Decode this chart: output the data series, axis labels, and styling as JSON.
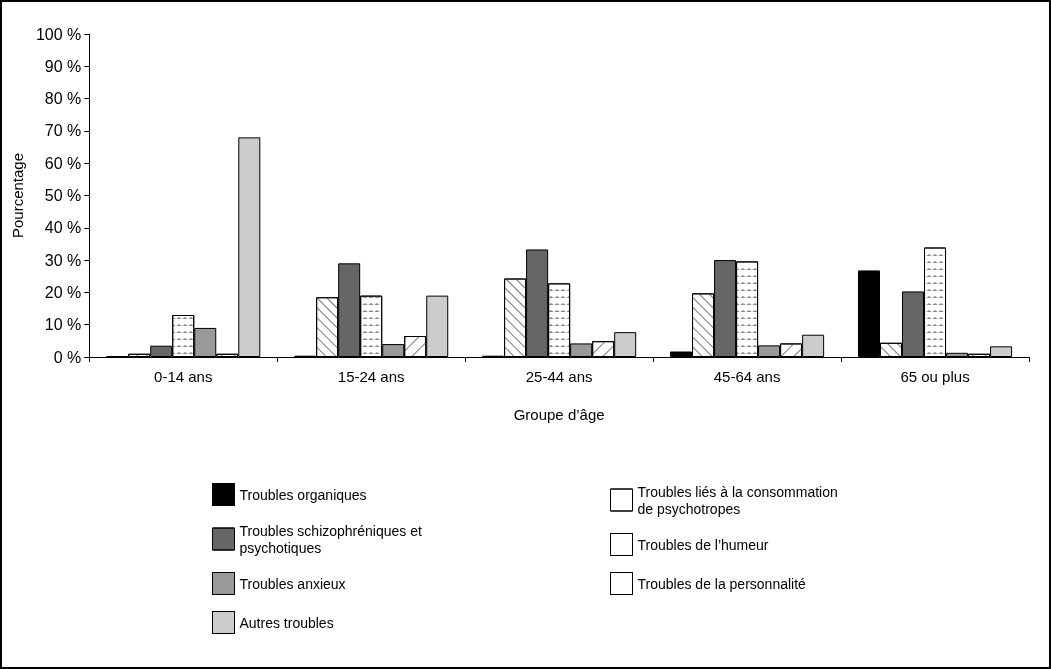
{
  "chart_data": {
    "type": "bar",
    "xlabel": "Groupe d’âge",
    "ylabel": "Pourcentage",
    "categories": [
      "0-14 ans",
      "15-24 ans",
      "25-44 ans",
      "45-64 ans",
      "65 ou plus"
    ],
    "series": [
      {
        "name": "Troubles organiques",
        "color": "#000000",
        "values": [
          0.2,
          0.4,
          0.4,
          1.7,
          26.8
        ]
      },
      {
        "name": "Troubles liés à la consommation de psychotropes",
        "color": "#ffffff",
        "values": [
          1,
          18.5,
          24.3,
          19.7,
          4.4
        ]
      },
      {
        "name": "Troubles schizophréniques et psychotiques",
        "color": "#666666",
        "values": [
          3.5,
          29,
          33.3,
          30,
          20.3
        ]
      },
      {
        "name": "Troubles de l’humeur",
        "color": "#ffffff",
        "values": [
          13,
          19,
          22.8,
          29.6,
          33.9
        ]
      },
      {
        "name": "Troubles anxieux",
        "color": "#999999",
        "values": [
          9,
          4,
          4.2,
          3.6,
          1.3
        ]
      },
      {
        "name": "Troubles de la personnalité",
        "color": "#ffffff",
        "values": [
          1,
          6.5,
          4.9,
          4.2,
          1
        ]
      },
      {
        "name": "Autres troubles",
        "color": "#cccccc",
        "values": [
          68,
          19,
          7.7,
          6.9,
          3.3
        ]
      }
    ],
    "ylim": [
      0,
      100
    ],
    "yticks": [
      {
        "value": 0,
        "label": "0 %"
      },
      {
        "value": 10,
        "label": "10 %"
      },
      {
        "value": 20,
        "label": "20 %"
      },
      {
        "value": 30,
        "label": "30 %"
      },
      {
        "value": 40,
        "label": "40 %"
      },
      {
        "value": 50,
        "label": "50 %"
      },
      {
        "value": 60,
        "label": "60 %"
      },
      {
        "value": 70,
        "label": "70 %"
      },
      {
        "value": 80,
        "label": "80 %"
      },
      {
        "value": 90,
        "label": "90 %"
      },
      {
        "value": 100,
        "label": "100 %"
      }
    ],
    "grid": false,
    "legend": "bottom"
  }
}
